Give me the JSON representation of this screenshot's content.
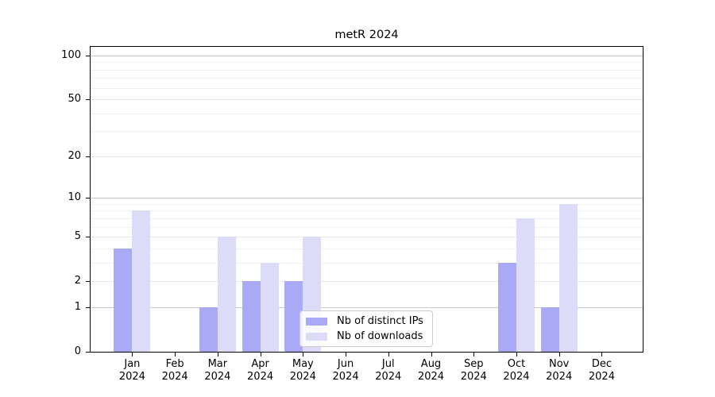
{
  "chart_data": {
    "type": "bar",
    "title": "metR 2024",
    "categories": [
      "Jan",
      "Feb",
      "Mar",
      "Apr",
      "May",
      "Jun",
      "Jul",
      "Aug",
      "Sep",
      "Oct",
      "Nov",
      "Dec"
    ],
    "category_sublabel": "2024",
    "series": [
      {
        "name": "Nb of distinct IPs",
        "color": "#a9a9f6",
        "values": [
          4,
          0,
          1,
          2,
          2,
          0,
          0,
          0,
          0,
          3,
          1,
          0
        ]
      },
      {
        "name": "Nb of downloads",
        "color": "#dcdcf8",
        "values": [
          8,
          0,
          5,
          3,
          5,
          0,
          0,
          0,
          0,
          7,
          9,
          0
        ]
      }
    ],
    "yscale": "log1p",
    "ylim": [
      0,
      100
    ],
    "yticks": [
      0,
      1,
      2,
      5,
      10,
      20,
      50,
      100
    ],
    "minor_gridlines": [
      3,
      4,
      6,
      7,
      8,
      9,
      30,
      40,
      60,
      70,
      80,
      90
    ],
    "emphasized_gridlines": [
      1,
      10,
      100
    ],
    "grid": "horizontal",
    "legend_position": "bottom-center"
  }
}
